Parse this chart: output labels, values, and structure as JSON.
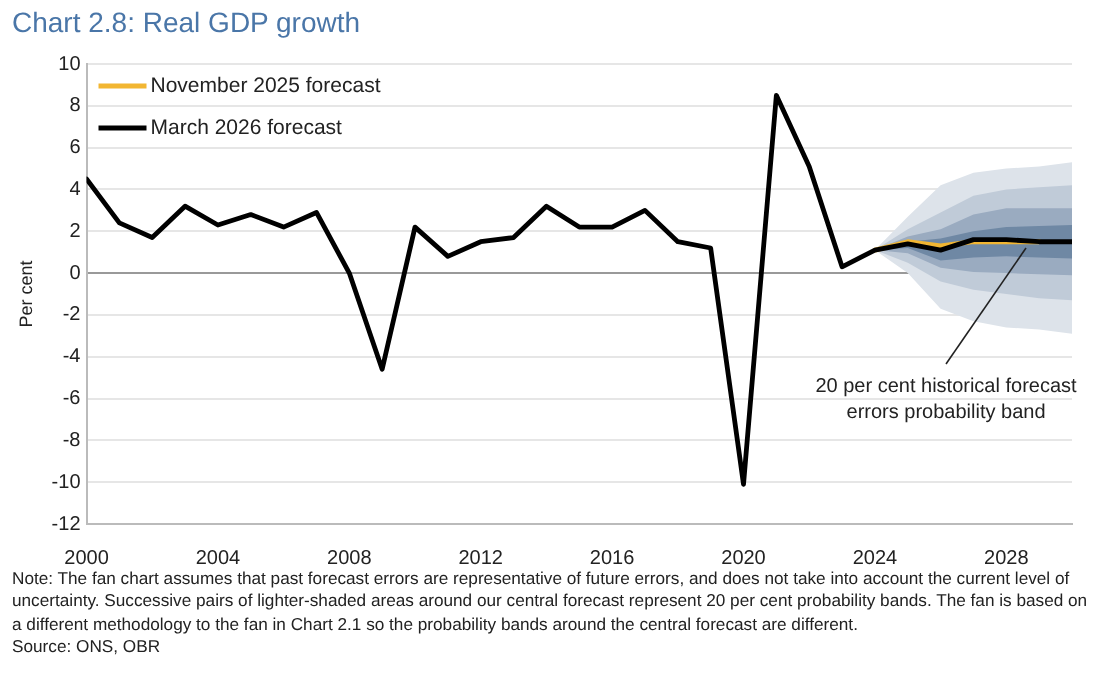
{
  "chart_data": {
    "type": "line",
    "title": "Chart 2.8: Real GDP growth",
    "ylabel": "Per cent",
    "xlim": [
      2000,
      2030
    ],
    "xticks": [
      2000,
      2004,
      2008,
      2012,
      2016,
      2020,
      2024,
      2028
    ],
    "ylim": [
      -12,
      10
    ],
    "yticks": [
      -12,
      -10,
      -8,
      -6,
      -4,
      -2,
      0,
      2,
      4,
      6,
      8,
      10
    ],
    "grid": "y",
    "legend": "top left",
    "marker": "none",
    "line_style": "solid",
    "series": [
      {
        "type": "line",
        "color": "#dde3ea",
        "x": [
          2024,
          2025,
          2026,
          2027,
          2028,
          2029,
          2030
        ],
        "values": [
          null,
          null,
          null,
          null,
          null,
          null,
          null
        ],
        "lower": [
          1.1,
          0.0,
          -1.7,
          -2.3,
          -2.6,
          -2.7,
          -2.9
        ],
        "upper": [
          1.1,
          2.7,
          4.2,
          4.8,
          5.0,
          5.1,
          5.3
        ]
      },
      {
        "type": "line",
        "color": "#c0cbd8",
        "x": [
          2024,
          2025,
          2026,
          2027,
          2028,
          2029,
          2030
        ],
        "values": [
          null,
          null,
          null,
          null,
          null,
          null,
          null
        ],
        "lower": [
          1.1,
          0.5,
          -0.4,
          -0.8,
          -1.0,
          -1.2,
          -1.3
        ],
        "upper": [
          1.1,
          2.1,
          2.9,
          3.7,
          4.0,
          4.1,
          4.2
        ]
      },
      {
        "type": "line",
        "color": "#9aabc0",
        "x": [
          2024,
          2025,
          2026,
          2027,
          2028,
          2029,
          2030
        ],
        "values": [
          null,
          null,
          null,
          null,
          null,
          null,
          null
        ],
        "lower": [
          1.1,
          0.95,
          0.25,
          0.05,
          0.0,
          -0.05,
          -0.1
        ],
        "upper": [
          1.1,
          1.75,
          2.1,
          2.8,
          3.1,
          3.1,
          3.1
        ]
      },
      {
        "type": "line",
        "color": "#6f88a4",
        "x": [
          2024,
          2025,
          2026,
          2027,
          2028,
          2029,
          2030
        ],
        "values": [
          null,
          null,
          null,
          null,
          null,
          null,
          null
        ],
        "lower": [
          1.1,
          1.2,
          0.6,
          0.75,
          0.8,
          0.75,
          0.7
        ],
        "upper": [
          1.1,
          1.5,
          1.65,
          2.0,
          2.2,
          2.25,
          2.3
        ]
      },
      {
        "name": "November 2025 forecast",
        "color": "#f2b632",
        "x": [
          2024,
          2025,
          2026,
          2027,
          2028,
          2029
        ],
        "values": [
          1.1,
          1.5,
          1.3,
          1.5,
          1.5,
          1.5
        ]
      },
      {
        "name": "March 2026 forecast",
        "color": "#000000",
        "x": [
          2000,
          2001,
          2002,
          2003,
          2004,
          2005,
          2006,
          2007,
          2008,
          2009,
          2010,
          2011,
          2012,
          2013,
          2014,
          2015,
          2016,
          2017,
          2018,
          2019,
          2020,
          2021,
          2022,
          2023,
          2024,
          2025,
          2026,
          2027,
          2028,
          2029,
          2030
        ],
        "values": [
          4.5,
          2.4,
          1.7,
          3.2,
          2.3,
          2.8,
          2.2,
          2.9,
          0.0,
          -4.6,
          2.2,
          0.8,
          1.5,
          1.7,
          3.2,
          2.2,
          2.2,
          3.0,
          1.5,
          1.2,
          -10.1,
          8.5,
          5.1,
          0.3,
          1.1,
          1.4,
          1.1,
          1.6,
          1.6,
          1.5,
          1.5
        ]
      }
    ],
    "annotations": [
      {
        "text": "20 per cent historical forecast errors probability band",
        "x": 2028.6,
        "y": 1.2
      },
      "Note: The fan chart assumes that past forecast errors are representative of future errors, and does not take into account the current level of uncertainty. Successive pairs of lighter-shaded areas around our central forecast represent 20 per cent probability bands. The fan is based on a different methodology to the fan in Chart 2.1 so the probability bands around the central forecast are different.",
      "Source: ONS, OBR"
    ]
  }
}
